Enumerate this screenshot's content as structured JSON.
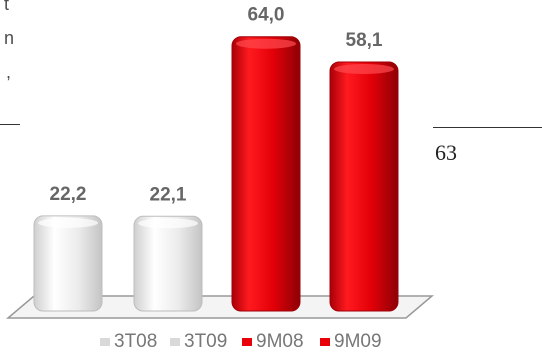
{
  "side_text": {
    "frag1": "t",
    "frag2": "n",
    "frag3": ",",
    "number": "63"
  },
  "chart_data": {
    "type": "bar",
    "categories": [
      "3T08",
      "3T09",
      "9M08",
      "9M09"
    ],
    "values": [
      22.2,
      22.1,
      64.0,
      58.1
    ],
    "data_labels": [
      "22,2",
      "22,1",
      "64,0",
      "58,1"
    ],
    "colors": [
      "#e6e6e6",
      "#e6e6e6",
      "#e8000a",
      "#e8000a"
    ],
    "legend": [
      "3T08",
      "3T09",
      "9M08",
      "9M09"
    ],
    "legend_position": "bottom",
    "ylim": [
      0,
      70
    ],
    "grid": false
  }
}
